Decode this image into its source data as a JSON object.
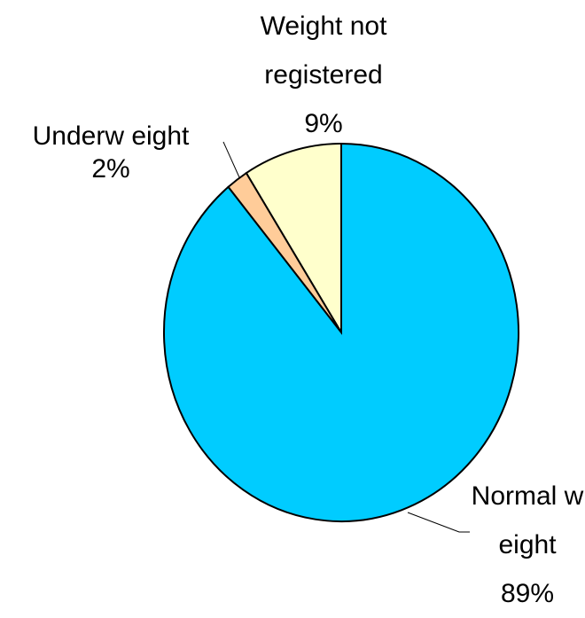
{
  "chart_data": {
    "type": "pie",
    "categories": [
      "Normal w eight",
      "Underw eight",
      "Weight not registered"
    ],
    "values": [
      89,
      2,
      9
    ],
    "value_labels": [
      "89%",
      "2%",
      "9%"
    ],
    "colors": [
      "#00CCFF",
      "#FFCC99",
      "#FFFFCC"
    ]
  }
}
